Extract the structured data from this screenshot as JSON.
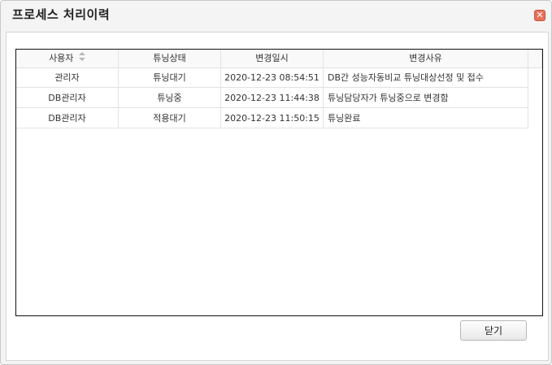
{
  "dialog": {
    "title": "프로세스 처리이력",
    "close_icon": "close-icon",
    "close_button_label": "닫기"
  },
  "table": {
    "columns": [
      "사용자",
      "튜닝상태",
      "변경일시",
      "변경사유"
    ],
    "sort_icon": "sort-updown-icon",
    "rows": [
      {
        "user": "관리자",
        "status": "튜닝대기",
        "datetime": "2020-12-23 08:54:51",
        "reason": "DB간 성능자동비교 튜닝대상선정 및 접수"
      },
      {
        "user": "DB관리자",
        "status": "튜닝중",
        "datetime": "2020-12-23 11:44:38",
        "reason": "튜닝담당자가 튜닝중으로 변경함"
      },
      {
        "user": "DB관리자",
        "status": "적용대기",
        "datetime": "2020-12-23 11:50:15",
        "reason": "튜닝완료"
      }
    ]
  },
  "colors": {
    "close_icon_bg": "#e8705a",
    "grid_border": "#111111",
    "dialog_bg": "#f4f4f4"
  }
}
